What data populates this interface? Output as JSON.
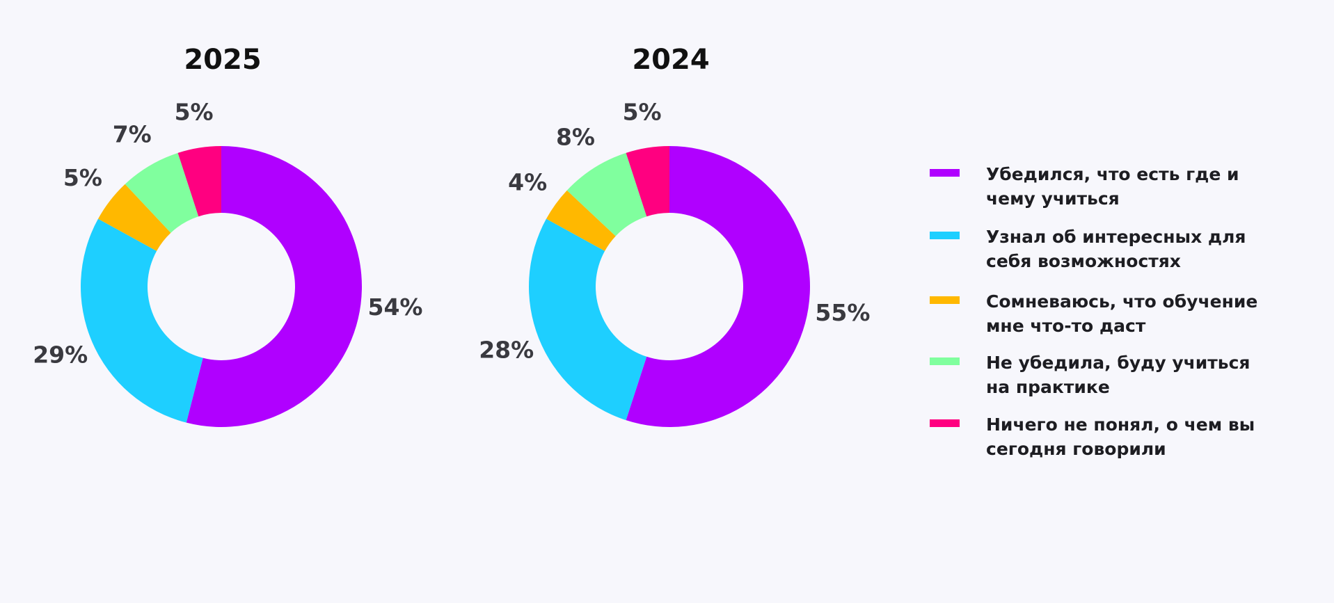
{
  "chart_data": {
    "type": "donut",
    "categories": [
      "Убедился, что есть где и чему учиться",
      "Узнал об интересных для себя возможностях",
      "Сомневаюсь, что обучение мне что-то даст",
      "Не убедила, буду учиться на практике",
      "Ничего не понял, о чем вы сегодня говорили"
    ],
    "colors": [
      "#b000ff",
      "#1ecfff",
      "#ffb800",
      "#80ff9e",
      "#ff0080"
    ],
    "series": [
      {
        "name": "2025",
        "values": [
          54,
          29,
          5,
          7,
          5
        ],
        "value_labels": [
          "54%",
          "29%",
          "5%",
          "7%",
          "5%"
        ]
      },
      {
        "name": "2024",
        "values": [
          55,
          28,
          4,
          8,
          5
        ],
        "value_labels": [
          "55%",
          "28%",
          "4%",
          "8%",
          "5%"
        ]
      }
    ]
  }
}
